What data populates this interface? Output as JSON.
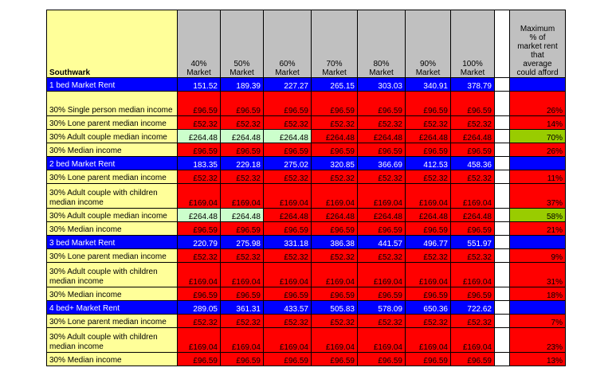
{
  "header": {
    "label": "Southwark",
    "columns": [
      "40%\nMarket",
      "50%\nMarket",
      "60%\nMarket",
      "70%\nMarket",
      "80%\nMarket",
      "90%\nMarket",
      "100%\nMarket"
    ],
    "max_label": "Maximum\n% of\nmarket rent\nthat\naverage\ncould afford"
  },
  "colors": {
    "yellow": "#ffff99",
    "grey": "#c0c0c0",
    "blue": "#0000ff",
    "red": "#ff0000",
    "green": "#ccffcc",
    "lime": "#99cc00"
  },
  "rows": [
    {
      "label": "1 bed Market Rent",
      "type": "blue",
      "values": [
        "151.52",
        "189.39",
        "227.27",
        "265.15",
        "303.03",
        "340.91",
        "378.79"
      ],
      "max": "",
      "max_color": "blue",
      "tall": false
    },
    {
      "label": "30% Single person median income",
      "type": "yellow",
      "values": [
        "£96.59",
        "£96.59",
        "£96.59",
        "£96.59",
        "£96.59",
        "£96.59",
        "£96.59"
      ],
      "cell_colors": [
        "red",
        "red",
        "red",
        "red",
        "red",
        "red",
        "red"
      ],
      "max": "26%",
      "max_color": "red",
      "tall": true
    },
    {
      "label": "30% Lone parent median income",
      "type": "yellow",
      "values": [
        "£52.32",
        "£52.32",
        "£52.32",
        "£52.32",
        "£52.32",
        "£52.32",
        "£52.32"
      ],
      "cell_colors": [
        "red",
        "red",
        "red",
        "red",
        "red",
        "red",
        "red"
      ],
      "max": "14%",
      "max_color": "red",
      "tall": false
    },
    {
      "label": "30% Adult couple median income",
      "type": "yellow",
      "values": [
        "£264.48",
        "£264.48",
        "£264.48",
        "£264.48",
        "£264.48",
        "£264.48",
        "£264.48"
      ],
      "cell_colors": [
        "green",
        "green",
        "green",
        "red",
        "red",
        "red",
        "red"
      ],
      "max": "70%",
      "max_color": "lime",
      "tall": false
    },
    {
      "label": "30% Median income",
      "type": "yellow",
      "values": [
        "£96.59",
        "£96.59",
        "£96.59",
        "£96.59",
        "£96.59",
        "£96.59",
        "£96.59"
      ],
      "cell_colors": [
        "red",
        "red",
        "red",
        "red",
        "red",
        "red",
        "red"
      ],
      "max": "26%",
      "max_color": "red",
      "tall": false
    },
    {
      "label": "2 bed Market Rent",
      "type": "blue",
      "values": [
        "183.35",
        "229.18",
        "275.02",
        "320.85",
        "366.69",
        "412.53",
        "458.36"
      ],
      "max": "",
      "max_color": "blue",
      "tall": false
    },
    {
      "label": "30% Lone parent median income",
      "type": "yellow",
      "values": [
        "£52.32",
        "£52.32",
        "£52.32",
        "£52.32",
        "£52.32",
        "£52.32",
        "£52.32"
      ],
      "cell_colors": [
        "red",
        "red",
        "red",
        "red",
        "red",
        "red",
        "red"
      ],
      "max": "11%",
      "max_color": "red",
      "tall": false
    },
    {
      "label": "30% Adult couple with children median income",
      "type": "yellow",
      "values": [
        "£169.04",
        "£169.04",
        "£169.04",
        "£169.04",
        "£169.04",
        "£169.04",
        "£169.04"
      ],
      "cell_colors": [
        "red",
        "red",
        "red",
        "red",
        "red",
        "red",
        "red"
      ],
      "max": "37%",
      "max_color": "red",
      "tall": true
    },
    {
      "label": "30% Adult couple median income",
      "type": "yellow",
      "values": [
        "£264.48",
        "£264.48",
        "£264.48",
        "£264.48",
        "£264.48",
        "£264.48",
        "£264.48"
      ],
      "cell_colors": [
        "green",
        "green",
        "red",
        "red",
        "red",
        "red",
        "red"
      ],
      "max": "58%",
      "max_color": "lime",
      "tall": false
    },
    {
      "label": "30% Median income",
      "type": "yellow",
      "values": [
        "£96.59",
        "£96.59",
        "£96.59",
        "£96.59",
        "£96.59",
        "£96.59",
        "£96.59"
      ],
      "cell_colors": [
        "red",
        "red",
        "red",
        "red",
        "red",
        "red",
        "red"
      ],
      "max": "21%",
      "max_color": "red",
      "tall": false
    },
    {
      "label": "3 bed Market Rent",
      "type": "blue",
      "values": [
        "220.79",
        "275.98",
        "331.18",
        "386.38",
        "441.57",
        "496.77",
        "551.97"
      ],
      "max": "",
      "max_color": "blue",
      "tall": false
    },
    {
      "label": "30% Lone parent median income",
      "type": "yellow",
      "values": [
        "£52.32",
        "£52.32",
        "£52.32",
        "£52.32",
        "£52.32",
        "£52.32",
        "£52.32"
      ],
      "cell_colors": [
        "red",
        "red",
        "red",
        "red",
        "red",
        "red",
        "red"
      ],
      "max": "9%",
      "max_color": "red",
      "tall": false
    },
    {
      "label": "30% Adult couple with children median income",
      "type": "yellow",
      "values": [
        "£169.04",
        "£169.04",
        "£169.04",
        "£169.04",
        "£169.04",
        "£169.04",
        "£169.04"
      ],
      "cell_colors": [
        "red",
        "red",
        "red",
        "red",
        "red",
        "red",
        "red"
      ],
      "max": "31%",
      "max_color": "red",
      "tall": true
    },
    {
      "label": "30% Median income",
      "type": "yellow",
      "values": [
        "£96.59",
        "£96.59",
        "£96.59",
        "£96.59",
        "£96.59",
        "£96.59",
        "£96.59"
      ],
      "cell_colors": [
        "red",
        "red",
        "red",
        "red",
        "red",
        "red",
        "red"
      ],
      "max": "18%",
      "max_color": "red",
      "tall": false
    },
    {
      "label": "4 bed+ Market Rent",
      "type": "blue",
      "values": [
        "289.05",
        "361.31",
        "433.57",
        "505.83",
        "578.09",
        "650.36",
        "722.62"
      ],
      "max": "",
      "max_color": "blue",
      "tall": false
    },
    {
      "label": "30% Lone parent median income",
      "type": "yellow",
      "values": [
        "£52.32",
        "£52.32",
        "£52.32",
        "£52.32",
        "£52.32",
        "£52.32",
        "£52.32"
      ],
      "cell_colors": [
        "red",
        "red",
        "red",
        "red",
        "red",
        "red",
        "red"
      ],
      "max": "7%",
      "max_color": "red",
      "tall": false
    },
    {
      "label": "30% Adult couple with children median income",
      "type": "yellow",
      "values": [
        "£169.04",
        "£169.04",
        "£169.04",
        "£169.04",
        "£169.04",
        "£169.04",
        "£169.04"
      ],
      "cell_colors": [
        "red",
        "red",
        "red",
        "red",
        "red",
        "red",
        "red"
      ],
      "max": "23%",
      "max_color": "red",
      "tall": true
    },
    {
      "label": "30% Median income",
      "type": "yellow",
      "values": [
        "£96.59",
        "£96.59",
        "£96.59",
        "£96.59",
        "£96.59",
        "£96.59",
        "£96.59"
      ],
      "cell_colors": [
        "red",
        "red",
        "red",
        "red",
        "red",
        "red",
        "red"
      ],
      "max": "13%",
      "max_color": "red",
      "tall": false
    }
  ]
}
